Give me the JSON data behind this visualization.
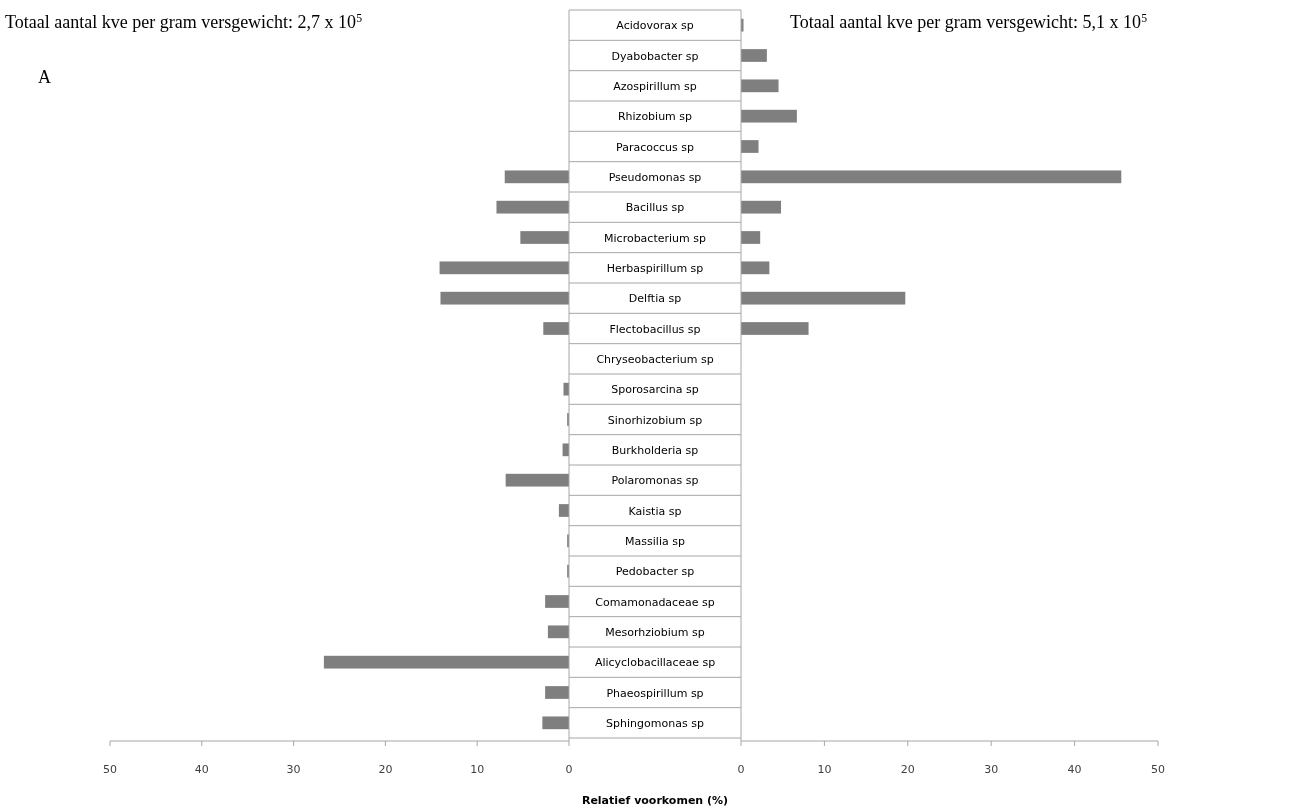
{
  "chart_data": [
    {
      "type": "bar",
      "orientation": "horizontal",
      "title": "Totaal aantal kve per gram versgewicht: 2,7 x 10$^{5}$",
      "xlabel": "Relatief voorkomen (%)",
      "annotations": [
        "A"
      ],
      "categories": [
        "Acidovorax sp",
        "Dyabobacter sp",
        "Azospirillum sp",
        "Rhizobium sp",
        "Paracoccus sp",
        "Pseudomonas sp",
        "Bacillus sp",
        "Microbacterium sp",
        "Herbaspirillum sp",
        "Delftia sp",
        "Flectobacillus sp",
        "Chryseobacterium sp",
        "Sporosarcina sp",
        "Sinorhizobium sp",
        "Burkholderia sp",
        "Polaromonas sp",
        "Kaistia sp",
        "Massilia sp",
        "Pedobacter sp",
        "Comamonadaceae sp",
        "Mesorhziobium sp",
        "Alicyclobacillaceae sp",
        "Phaeospirillum sp",
        "Sphingomonas sp"
      ],
      "values": [
        0,
        0,
        0,
        0,
        0,
        7.0,
        7.9,
        5.3,
        14.1,
        14.0,
        2.8,
        0,
        0.6,
        0.2,
        0.7,
        6.9,
        1.1,
        0.2,
        0.2,
        2.6,
        2.3,
        26.7,
        2.6,
        2.9
      ],
      "color": "#7f7f7f",
      "xlim": [
        50,
        0
      ],
      "xticks": [
        50,
        40,
        30,
        20,
        10,
        0
      ]
    },
    {
      "type": "bar",
      "orientation": "horizontal",
      "title": "Totaal aantal kve per gram versgewicht: 5,1 x 10$^{5}$",
      "tick_labels": "x",
      "categories": [
        "Acidovorax sp",
        "Dyabobacter sp",
        "Azospirillum sp",
        "Rhizobium sp",
        "Paracoccus sp",
        "Pseudomonas sp",
        "Bacillus sp",
        "Microbacterium sp",
        "Herbaspirillum sp",
        "Delftia sp",
        "Flectobacillus sp",
        "Chryseobacterium sp",
        "Sporosarcina sp",
        "Sinorhizobium sp",
        "Burkholderia sp",
        "Polaromonas sp",
        "Kaistia sp",
        "Massilia sp",
        "Pedobacter sp",
        "Comamonadaceae sp",
        "Mesorhziobium sp",
        "Alicyclobacillaceae sp",
        "Phaeospirillum sp",
        "Sphingomonas sp"
      ],
      "values": [
        0.3,
        3.1,
        4.5,
        6.7,
        2.1,
        45.6,
        4.8,
        2.3,
        3.4,
        19.7,
        8.1,
        0,
        0,
        0,
        0,
        0,
        0,
        0,
        0,
        0,
        0,
        0,
        0,
        0
      ],
      "color": "#7f7f7f",
      "xlim": [
        0,
        50
      ],
      "xticks": [
        0,
        10,
        20,
        30,
        40,
        50
      ]
    }
  ]
}
